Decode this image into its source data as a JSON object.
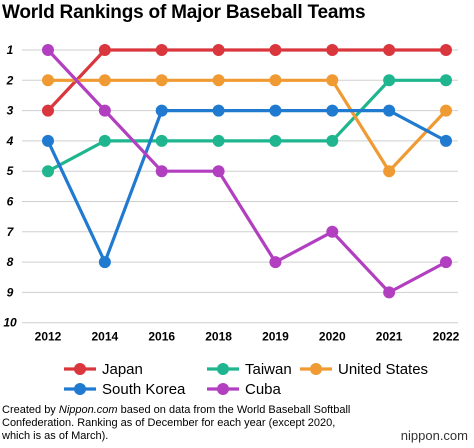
{
  "chart_data": {
    "type": "line",
    "title": "World Rankings of Major Baseball Teams",
    "x": [
      "2012",
      "2014",
      "2016",
      "2018",
      "2019",
      "2020",
      "2021",
      "2022"
    ],
    "y_ticks": [
      "1",
      "2",
      "3",
      "4",
      "5",
      "6",
      "7",
      "8",
      "9",
      "10"
    ],
    "ylim": [
      1,
      10
    ],
    "y_inverted": true,
    "grid": "horizontal",
    "legend": "bottom",
    "series": [
      {
        "name": "Japan",
        "color": "#d9363e",
        "values": [
          3,
          1,
          1,
          1,
          1,
          1,
          1,
          1
        ]
      },
      {
        "name": "Taiwan",
        "color": "#1fb58f",
        "values": [
          5,
          4,
          4,
          4,
          4,
          4,
          2,
          2
        ]
      },
      {
        "name": "United States",
        "color": "#ef9a33",
        "values": [
          2,
          2,
          2,
          2,
          2,
          2,
          5,
          3
        ]
      },
      {
        "name": "South Korea",
        "color": "#1f7ad0",
        "values": [
          4,
          8,
          3,
          3,
          3,
          3,
          3,
          4
        ]
      },
      {
        "name": "Cuba",
        "color": "#b23fc0",
        "values": [
          1,
          3,
          5,
          5,
          8,
          7,
          9,
          8
        ]
      }
    ]
  },
  "footer": {
    "created_by": "Created by ",
    "source_name": "Nippon.com",
    "rest": " based on data from the World Baseball Softball Confederation. Ranking as of December for each year (except 2020, which is as of March)."
  },
  "brand": "nippon.com"
}
